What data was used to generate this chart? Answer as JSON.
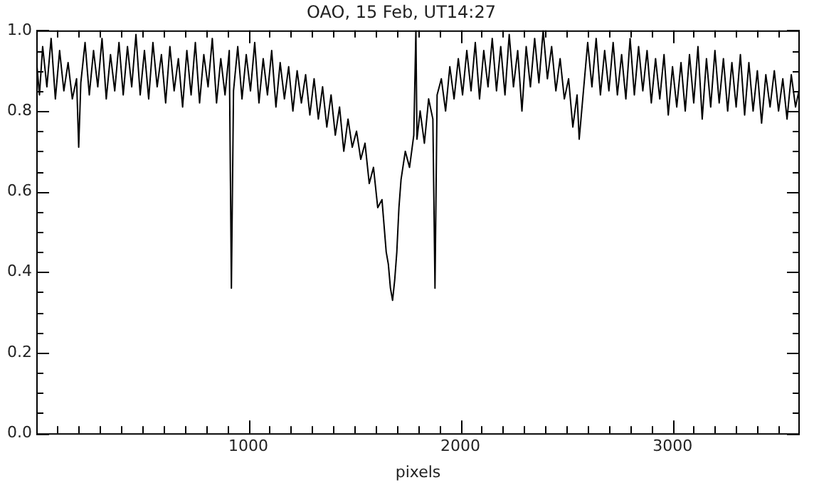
{
  "chart_data": {
    "type": "line",
    "title": "OAO, 15 Feb, UT14:27",
    "xlabel": "pixels",
    "xlim": [
      0,
      3600
    ],
    "xticks": [
      {
        "value": 100,
        "label": null
      },
      {
        "value": 200,
        "label": null
      },
      {
        "value": 300,
        "label": null
      },
      {
        "value": 400,
        "label": null
      },
      {
        "value": 500,
        "label": null
      },
      {
        "value": 600,
        "label": null
      },
      {
        "value": 700,
        "label": null
      },
      {
        "value": 800,
        "label": null
      },
      {
        "value": 900,
        "label": null
      },
      1000,
      {
        "value": 1100,
        "label": null
      },
      {
        "value": 1200,
        "label": null
      },
      {
        "value": 1300,
        "label": null
      },
      {
        "value": 1400,
        "label": null
      },
      {
        "value": 1500,
        "label": null
      },
      {
        "value": 1600,
        "label": null
      },
      {
        "value": 1700,
        "label": null
      },
      {
        "value": 1800,
        "label": null
      },
      {
        "value": 1900,
        "label": null
      },
      2000,
      {
        "value": 2100,
        "label": null
      },
      {
        "value": 2200,
        "label": null
      },
      {
        "value": 2300,
        "label": null
      },
      {
        "value": 2400,
        "label": null
      },
      {
        "value": 2500,
        "label": null
      },
      {
        "value": 2600,
        "label": null
      },
      {
        "value": 2700,
        "label": null
      },
      {
        "value": 2800,
        "label": null
      },
      {
        "value": 2900,
        "label": null
      },
      3000,
      {
        "value": 3100,
        "label": null
      },
      {
        "value": 3200,
        "label": null
      },
      {
        "value": 3300,
        "label": null
      },
      {
        "value": 3400,
        "label": null
      },
      {
        "value": 3500,
        "label": null
      }
    ],
    "ylim": [
      0,
      1
    ],
    "yticks": [
      {
        "value": 0,
        "label": "0.0"
      },
      {
        "value": 0.05,
        "label": null
      },
      {
        "value": 0.1,
        "label": null
      },
      {
        "value": 0.15,
        "label": null
      },
      {
        "value": 0.2,
        "label": "0.2"
      },
      {
        "value": 0.25,
        "label": null
      },
      {
        "value": 0.3,
        "label": null
      },
      {
        "value": 0.35,
        "label": null
      },
      {
        "value": 0.4,
        "label": "0.4"
      },
      {
        "value": 0.45,
        "label": null
      },
      {
        "value": 0.5,
        "label": null
      },
      {
        "value": 0.55,
        "label": null
      },
      {
        "value": 0.6,
        "label": "0.6"
      },
      {
        "value": 0.65,
        "label": null
      },
      {
        "value": 0.7,
        "label": null
      },
      {
        "value": 0.75,
        "label": null
      },
      {
        "value": 0.8,
        "label": "0.8"
      },
      {
        "value": 0.85,
        "label": null
      },
      {
        "value": 0.9,
        "label": null
      },
      {
        "value": 0.95,
        "label": null
      },
      {
        "value": 1,
        "label": "1.0"
      }
    ],
    "grid": false,
    "legend": false,
    "marker": "none",
    "line_style": "solid",
    "series": [
      {
        "color": "#000000",
        "x": [
          0,
          15,
          30,
          50,
          70,
          90,
          110,
          130,
          150,
          170,
          190,
          200,
          210,
          230,
          250,
          270,
          290,
          310,
          330,
          350,
          370,
          390,
          410,
          430,
          450,
          470,
          490,
          510,
          530,
          550,
          570,
          590,
          610,
          630,
          650,
          670,
          690,
          710,
          730,
          750,
          770,
          790,
          810,
          830,
          850,
          870,
          890,
          910,
          920,
          930,
          950,
          970,
          990,
          1010,
          1030,
          1050,
          1070,
          1090,
          1110,
          1130,
          1150,
          1170,
          1190,
          1210,
          1230,
          1250,
          1270,
          1290,
          1310,
          1330,
          1350,
          1370,
          1390,
          1410,
          1430,
          1450,
          1470,
          1490,
          1510,
          1530,
          1550,
          1570,
          1590,
          1610,
          1630,
          1650,
          1660,
          1670,
          1680,
          1690,
          1700,
          1710,
          1720,
          1740,
          1760,
          1780,
          1790,
          1795,
          1810,
          1830,
          1850,
          1870,
          1880,
          1890,
          1910,
          1930,
          1950,
          1970,
          1990,
          2010,
          2030,
          2050,
          2070,
          2090,
          2110,
          2130,
          2150,
          2170,
          2190,
          2210,
          2230,
          2250,
          2270,
          2290,
          2310,
          2330,
          2350,
          2370,
          2390,
          2410,
          2430,
          2450,
          2470,
          2490,
          2510,
          2530,
          2550,
          2560,
          2580,
          2600,
          2620,
          2640,
          2660,
          2680,
          2700,
          2720,
          2740,
          2760,
          2780,
          2800,
          2820,
          2840,
          2860,
          2880,
          2900,
          2920,
          2940,
          2960,
          2980,
          3000,
          3020,
          3040,
          3060,
          3080,
          3100,
          3120,
          3140,
          3160,
          3180,
          3200,
          3220,
          3240,
          3260,
          3280,
          3300,
          3320,
          3340,
          3360,
          3380,
          3400,
          3420,
          3440,
          3460,
          3480,
          3500,
          3520,
          3540,
          3560,
          3580,
          3600
        ],
        "values": [
          0.93,
          0.84,
          0.96,
          0.86,
          0.98,
          0.83,
          0.95,
          0.85,
          0.92,
          0.83,
          0.88,
          0.71,
          0.87,
          0.97,
          0.84,
          0.95,
          0.86,
          0.98,
          0.83,
          0.94,
          0.85,
          0.97,
          0.84,
          0.96,
          0.86,
          0.99,
          0.84,
          0.95,
          0.83,
          0.97,
          0.86,
          0.94,
          0.82,
          0.96,
          0.85,
          0.93,
          0.81,
          0.95,
          0.84,
          0.97,
          0.82,
          0.94,
          0.86,
          0.98,
          0.82,
          0.93,
          0.84,
          0.95,
          0.36,
          0.85,
          0.96,
          0.83,
          0.94,
          0.85,
          0.97,
          0.82,
          0.93,
          0.84,
          0.95,
          0.81,
          0.92,
          0.83,
          0.91,
          0.8,
          0.9,
          0.82,
          0.89,
          0.79,
          0.88,
          0.78,
          0.86,
          0.76,
          0.84,
          0.74,
          0.81,
          0.7,
          0.78,
          0.71,
          0.75,
          0.68,
          0.72,
          0.62,
          0.66,
          0.56,
          0.58,
          0.45,
          0.42,
          0.36,
          0.33,
          0.38,
          0.45,
          0.56,
          0.63,
          0.7,
          0.66,
          0.74,
          1.0,
          0.73,
          0.8,
          0.72,
          0.83,
          0.78,
          0.36,
          0.84,
          0.88,
          0.8,
          0.91,
          0.83,
          0.93,
          0.84,
          0.95,
          0.85,
          0.97,
          0.83,
          0.95,
          0.86,
          0.98,
          0.85,
          0.96,
          0.84,
          0.99,
          0.86,
          0.95,
          0.8,
          0.96,
          0.86,
          0.98,
          0.87,
          1.0,
          0.88,
          0.96,
          0.85,
          0.93,
          0.83,
          0.88,
          0.76,
          0.84,
          0.73,
          0.85,
          0.97,
          0.86,
          0.98,
          0.84,
          0.95,
          0.85,
          0.97,
          0.84,
          0.94,
          0.83,
          0.98,
          0.84,
          0.96,
          0.85,
          0.95,
          0.82,
          0.93,
          0.83,
          0.94,
          0.79,
          0.91,
          0.81,
          0.92,
          0.8,
          0.94,
          0.82,
          0.96,
          0.78,
          0.93,
          0.81,
          0.95,
          0.82,
          0.93,
          0.8,
          0.92,
          0.81,
          0.94,
          0.79,
          0.92,
          0.8,
          0.9,
          0.77,
          0.89,
          0.81,
          0.9,
          0.8,
          0.88,
          0.78,
          0.89,
          0.81,
          0.86
        ]
      }
    ]
  }
}
